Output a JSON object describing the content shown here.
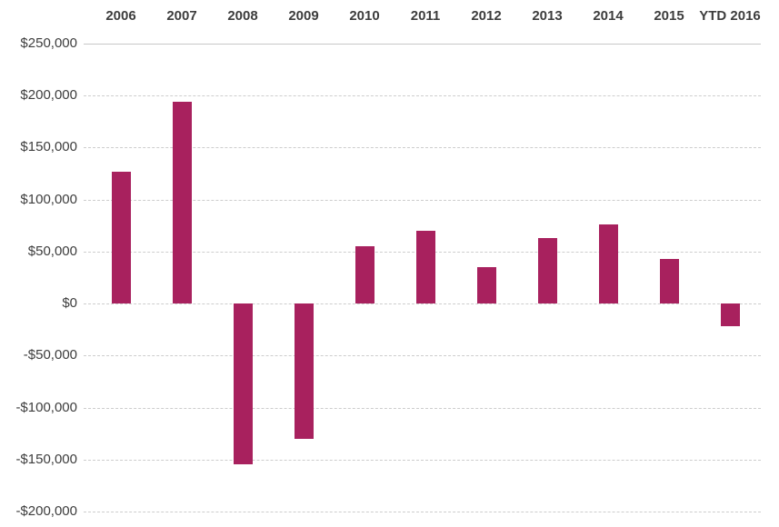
{
  "chart_data": {
    "type": "bar",
    "title": "",
    "xlabel": "",
    "ylabel": "",
    "categories": [
      "2006",
      "2007",
      "2008",
      "2009",
      "2010",
      "2011",
      "2012",
      "2013",
      "2014",
      "2015",
      "YTD 2016"
    ],
    "values": [
      127000,
      194000,
      -155000,
      -130000,
      55000,
      70000,
      35000,
      63000,
      76000,
      43000,
      -22000
    ],
    "ylim": [
      -200000,
      250000
    ],
    "ytick_step": 50000,
    "yticks": [
      {
        "value": 250000,
        "label": "$250,000"
      },
      {
        "value": 200000,
        "label": "$200,000"
      },
      {
        "value": 150000,
        "label": "$150,000"
      },
      {
        "value": 100000,
        "label": "$100,000"
      },
      {
        "value": 50000,
        "label": "$50,000"
      },
      {
        "value": 0,
        "label": "$0"
      },
      {
        "value": -50000,
        "label": "-$50,000"
      },
      {
        "value": -100000,
        "label": "-$100,000"
      },
      {
        "value": -150000,
        "label": "-$150,000"
      },
      {
        "value": -200000,
        "label": "-$200,000"
      }
    ],
    "grid": true,
    "legend": "none",
    "x_axis_position": "top",
    "colors": {
      "bar": "#a8215e",
      "gridline": "#cdcdcd",
      "axis_label": "#3d3d3d",
      "background": "#ffffff"
    }
  }
}
